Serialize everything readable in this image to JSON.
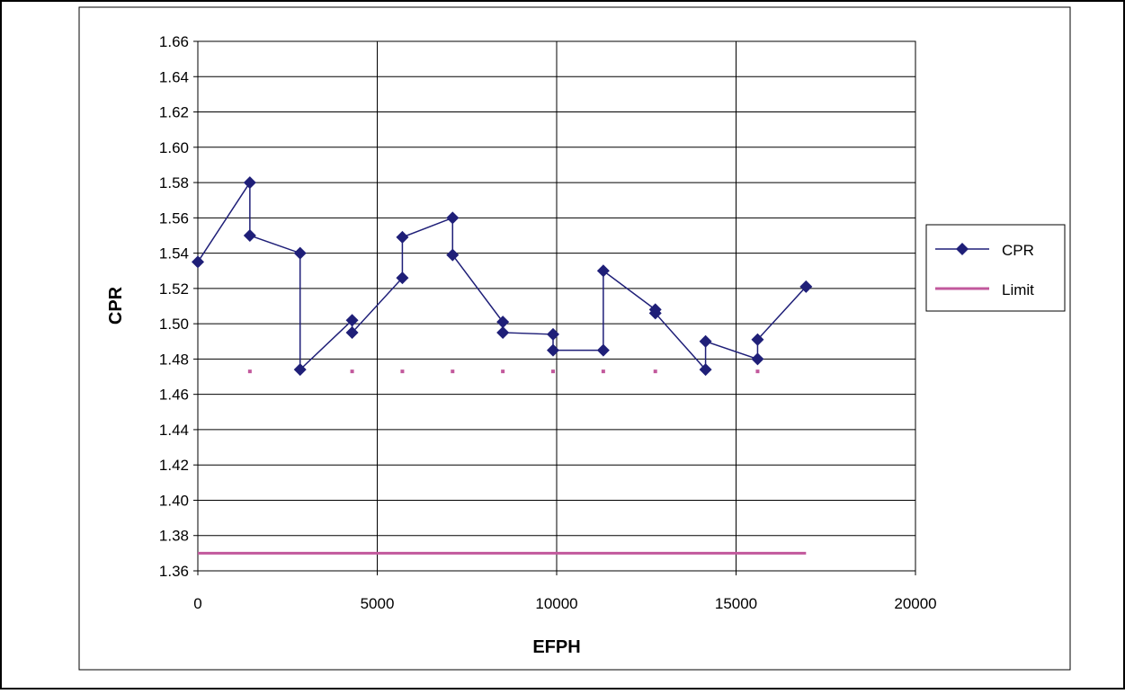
{
  "chart_data": {
    "type": "line",
    "xlabel": "EFPH",
    "ylabel": "CPR",
    "xlim": [
      0,
      20000
    ],
    "ylim": [
      1.36,
      1.66
    ],
    "x_ticks": [
      0,
      5000,
      10000,
      15000,
      20000
    ],
    "y_ticks": [
      1.36,
      1.38,
      1.4,
      1.42,
      1.44,
      1.46,
      1.48,
      1.5,
      1.52,
      1.54,
      1.56,
      1.58,
      1.6,
      1.62,
      1.64,
      1.66
    ],
    "grid": true,
    "legend_position": "right",
    "series": [
      {
        "name": "CPR",
        "color": "#1f1f78",
        "marker": "diamond",
        "x": [
          0,
          1450,
          1450,
          2850,
          2850,
          4300,
          4300,
          5700,
          5700,
          7100,
          7100,
          8500,
          8500,
          9900,
          9900,
          11300,
          11300,
          12750,
          12750,
          14150,
          14150,
          15600,
          15600,
          16950
        ],
        "y": [
          1.535,
          1.58,
          1.55,
          1.54,
          1.474,
          1.502,
          1.495,
          1.526,
          1.549,
          1.56,
          1.539,
          1.501,
          1.495,
          1.494,
          1.485,
          1.485,
          1.53,
          1.508,
          1.506,
          1.474,
          1.49,
          1.48,
          1.491,
          1.521
        ]
      },
      {
        "name": "Limit",
        "color": "#c2589c",
        "marker": "none",
        "x": [
          0,
          16950
        ],
        "y": [
          1.37,
          1.37
        ]
      }
    ],
    "limit_dots": {
      "color": "#c2589c",
      "x": [
        1450,
        4300,
        5700,
        7100,
        8500,
        9900,
        11300,
        12750,
        15600
      ],
      "y": 1.473
    }
  }
}
